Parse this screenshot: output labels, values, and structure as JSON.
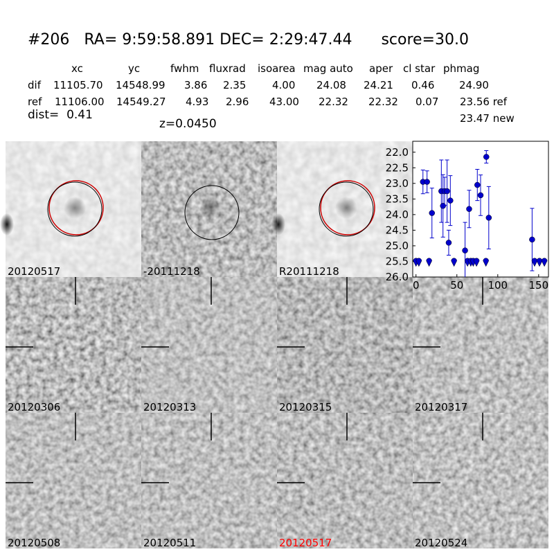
{
  "header": {
    "title": "#206   RA= 9:59:58.891 DEC= 2:29:47.44      score=30.0"
  },
  "table": {
    "columns": [
      "xc",
      "yc",
      "fwhm",
      "fluxrad",
      "isoarea",
      "mag auto",
      "aper",
      "cl star",
      "phmag"
    ],
    "rows": [
      [
        "dif",
        "11105.70",
        "14548.99",
        "3.86",
        "2.35",
        "4.00",
        "24.08",
        "24.21",
        "0.46",
        "24.90"
      ],
      [
        "ref",
        "11106.00",
        "14549.27",
        "4.93",
        "2.96",
        "43.00",
        "22.32",
        "22.32",
        "0.07",
        "23.56 ref"
      ]
    ]
  },
  "dist": "dist=  0.41",
  "z": "z=0.0450",
  "phmag_new": "23.47 new",
  "panels": [
    {
      "label": "20120517"
    },
    {
      "label": "-20111218"
    },
    {
      "label": "R20111218"
    },
    {
      "label": "20120306"
    },
    {
      "label": "20120313"
    },
    {
      "label": "20120315"
    },
    {
      "label": "20120317"
    },
    {
      "label": "20120508"
    },
    {
      "label": "20120511"
    },
    {
      "label": "20120517",
      "color": "#ff0000"
    },
    {
      "label": "20120524"
    }
  ],
  "chart_data": {
    "type": "scatter",
    "xlim": [
      -4,
      162
    ],
    "xticks": [
      0,
      50,
      100,
      150
    ],
    "ylim": [
      26.0,
      21.65
    ],
    "yticks": [
      {
        "value": 22,
        "label": "22.0"
      },
      22.5,
      {
        "value": 23,
        "label": "23.0"
      },
      23.5,
      {
        "value": 24,
        "label": "24.0"
      },
      24.5,
      {
        "value": 25,
        "label": "25.0"
      },
      25.5,
      {
        "value": 26,
        "label": "26.0"
      }
    ],
    "series": [
      {
        "color": "#0000cc",
        "marker": "circle",
        "x": [
          8.5,
          13.5,
          19.5,
          31,
          33,
          35,
          38,
          40,
          42,
          60,
          65,
          75,
          79,
          86,
          89,
          142
        ],
        "values": [
          22.95,
          22.95,
          23.95,
          23.25,
          23.72,
          23.25,
          23.25,
          24.9,
          23.55,
          25.15,
          23.82,
          23.05,
          23.38,
          22.15,
          24.1,
          24.8
        ],
        "errors": [
          0.38,
          0.35,
          0.8,
          1.0,
          1.0,
          0.45,
          1.0,
          0.4,
          0.8,
          0.9,
          0.6,
          0.5,
          0.65,
          0.2,
          1.0,
          1.0
        ]
      },
      {
        "color": "#0000cc",
        "marker": "limit",
        "x": [
          0,
          3.5,
          16,
          46.5,
          63,
          67,
          70,
          74,
          85.5,
          145,
          151,
          157
        ],
        "values": [
          25.55,
          25.55,
          25.55,
          25.55,
          25.55,
          25.55,
          25.55,
          25.55,
          25.55,
          25.55,
          25.55,
          25.55
        ]
      }
    ]
  }
}
